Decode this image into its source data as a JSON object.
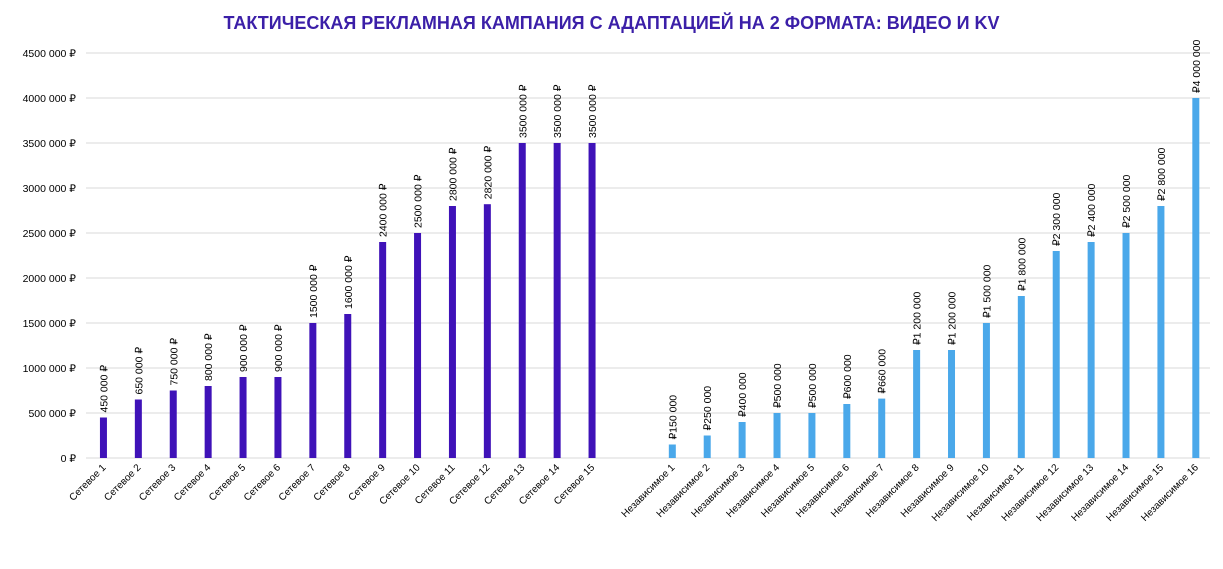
{
  "chart_data": {
    "type": "bar",
    "title": "ТАКТИЧЕСКАЯ РЕКЛАМНАЯ КАМПАНИЯ С АДАПТАЦИЕЙ НА 2 ФОРМАТА: ВИДЕО И KV",
    "title_color": "#3b1fa8",
    "xlabel": "",
    "ylabel": "",
    "ylim": [
      0,
      4500000
    ],
    "y_ticks": [
      0,
      500000,
      1000000,
      1500000,
      2000000,
      2500000,
      3000000,
      3500000,
      4000000,
      4500000
    ],
    "y_tick_labels": [
      "0 ₽",
      "500 000 ₽",
      "1000 000 ₽",
      "1500 000 ₽",
      "2000 000 ₽",
      "2500 000 ₽",
      "3000 000 ₽",
      "3500 000 ₽",
      "4000 000 ₽",
      "4500 000 ₽"
    ],
    "grid": true,
    "legend": "none",
    "groups": [
      {
        "color": "#3f12b8",
        "categories": [
          "Сетевое 1",
          "Сетевое 2",
          "Сетевое 3",
          "Сетевое 4",
          "Сетевое 5",
          "Сетевое 6",
          "Сетевое 7",
          "Сетевое 8",
          "Сетевое 9",
          "Сетевое 10",
          "Сетевое 11",
          "Сетевое 12",
          "Сетевое 13",
          "Сетевое 14",
          "Сетевое 15"
        ],
        "values": [
          450000,
          650000,
          750000,
          800000,
          900000,
          900000,
          1500000,
          1600000,
          2400000,
          2500000,
          2800000,
          2820000,
          3500000,
          3500000,
          3500000
        ],
        "data_labels": [
          "450 000 ₽",
          "650 000 ₽",
          "750 000 ₽",
          "800 000 ₽",
          "900 000 ₽",
          "900 000 ₽",
          "1500 000 ₽",
          "1600 000 ₽",
          "2400 000 ₽",
          "2500 000 ₽",
          "2800 000 ₽",
          "2820 000 ₽",
          "3500 000 ₽",
          "3500 000 ₽",
          "3500 000 ₽"
        ]
      },
      {
        "color": "#4aa8ea",
        "categories": [
          "Независимое 1",
          "Независимое 2",
          "Независимое 3",
          "Независимое 4",
          "Независимое 5",
          "Независимое 6",
          "Независимое 7",
          "Независимое 8",
          "Независимое 9",
          "Независимое 10",
          "Независимое 11",
          "Независимое 12",
          "Независимое 13",
          "Независимое 14",
          "Независимое 15",
          "Независимое 16"
        ],
        "values": [
          150000,
          250000,
          400000,
          500000,
          500000,
          600000,
          660000,
          1200000,
          1200000,
          1500000,
          1800000,
          2300000,
          2400000,
          2500000,
          2800000,
          4000000
        ],
        "data_labels": [
          "₽150 000",
          "₽250 000",
          "₽400 000",
          "₽500 000",
          "₽500 000",
          "₽600 000",
          "₽660 000",
          "₽1 200 000",
          "₽1 200 000",
          "₽1 500 000",
          "₽1 800 000",
          "₽2 300 000",
          "₽2 400 000",
          "₽2 500 000",
          "₽2 800 000",
          "₽4 000 000"
        ]
      }
    ]
  }
}
